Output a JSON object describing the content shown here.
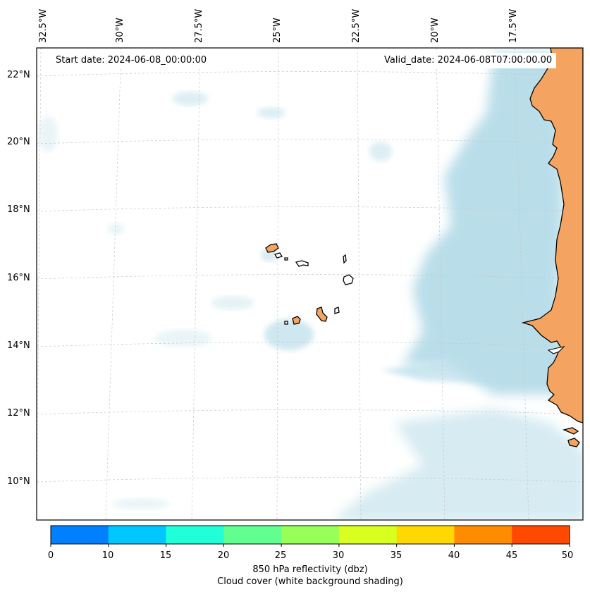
{
  "map": {
    "start_date": "Start date: 2024-06-08_00:00:00",
    "valid_date": "Valid_date: 2024-06-08T07:00:00.00",
    "lon_labels": [
      "32.5°W",
      "30°W",
      "27.5°W",
      "25°W",
      "22.5°W",
      "20°W",
      "17.5°W"
    ],
    "lat_labels": [
      "22°N",
      "20°N",
      "18°N",
      "16°N",
      "14°N",
      "12°N",
      "10°N"
    ],
    "land_color": "#f4a460",
    "cloud_color": "#add8e6"
  },
  "colorbar": {
    "ticks": [
      "0",
      "10",
      "15",
      "20",
      "25",
      "30",
      "35",
      "40",
      "45",
      "50"
    ],
    "colors": [
      "#0080ff",
      "#00c8ff",
      "#20ffd8",
      "#60ff90",
      "#98ff58",
      "#d8ff20",
      "#ffd800",
      "#ff8c00",
      "#ff4800"
    ],
    "label": "850 hPa reflectivity (dbz)",
    "sublabel": "Cloud cover (white background shading)"
  }
}
